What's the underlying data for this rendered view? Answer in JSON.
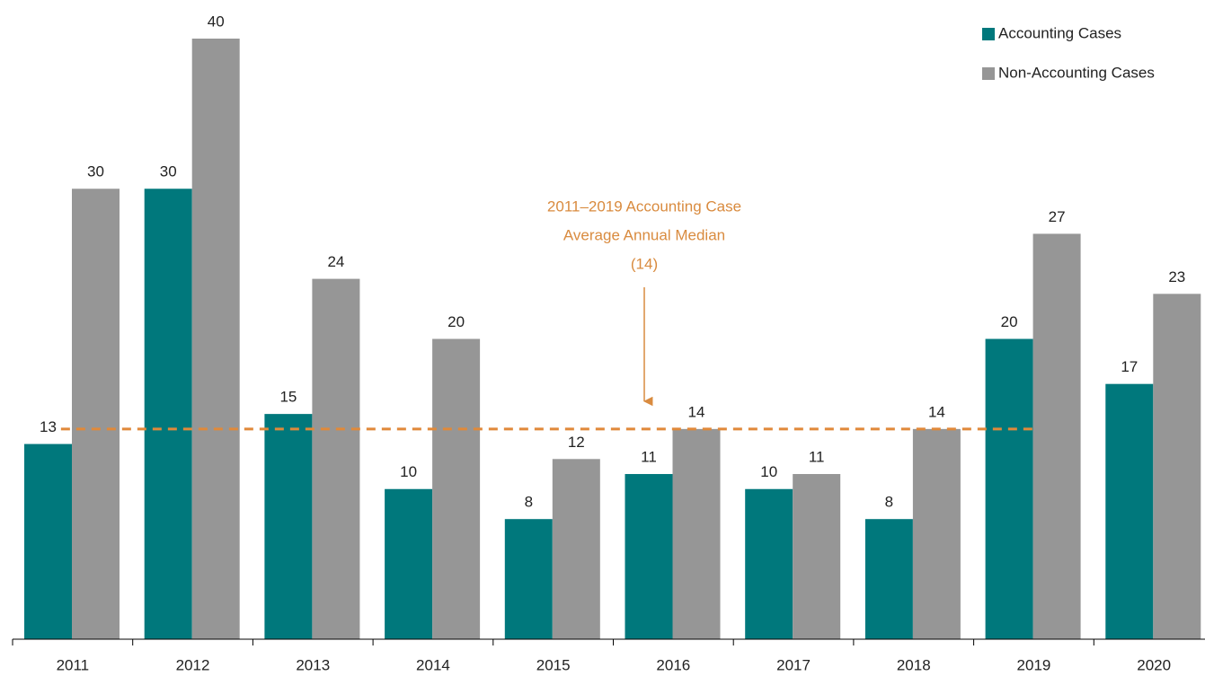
{
  "chart_data": {
    "type": "bar",
    "categories": [
      "2011",
      "2012",
      "2013",
      "2014",
      "2015",
      "2016",
      "2017",
      "2018",
      "2019",
      "2020"
    ],
    "series": [
      {
        "name": "Accounting Cases",
        "color": "#00787c",
        "values": [
          13,
          30,
          15,
          10,
          8,
          11,
          10,
          8,
          20,
          17
        ]
      },
      {
        "name": "Non-Accounting Cases",
        "color": "#969696",
        "values": [
          30,
          40,
          24,
          20,
          12,
          14,
          11,
          14,
          27,
          23
        ]
      }
    ],
    "ylim": [
      0,
      40
    ],
    "legend": "upper right",
    "reference_line": {
      "value": 14,
      "label": "(14)",
      "color": "#e0893a",
      "text": [
        "2011–2019 Accounting Case",
        "Average Annual Median"
      ]
    }
  }
}
